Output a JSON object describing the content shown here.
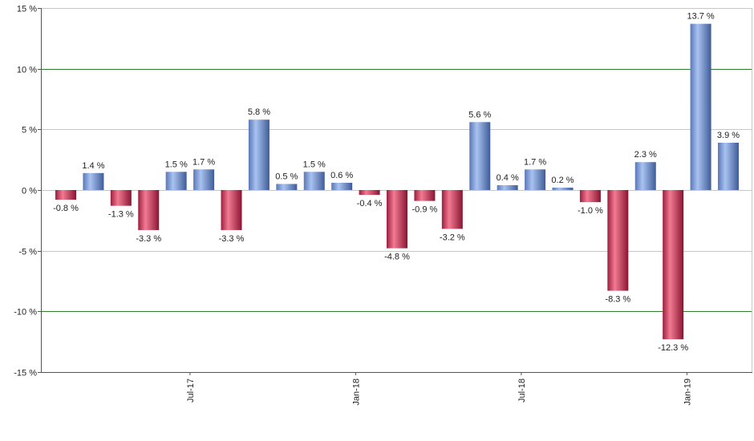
{
  "chart_data": {
    "type": "bar",
    "title": "",
    "xlabel": "",
    "ylabel": "",
    "ylim": [
      -15,
      15
    ],
    "y_ticks": [
      15,
      10,
      5,
      0,
      -5,
      -10,
      -15
    ],
    "y_tick_labels": [
      "15 %",
      "10 %",
      "5 %",
      "0 %",
      "-5 %",
      "-10 %",
      "-15 %"
    ],
    "x_tick_labels": [
      {
        "label": "Jul-17",
        "after_index": 4
      },
      {
        "label": "Jan-18",
        "after_index": 10
      },
      {
        "label": "Jul-18",
        "after_index": 16
      },
      {
        "label": "Jan-19",
        "after_index": 22
      }
    ],
    "values": [
      -0.8,
      1.4,
      -1.3,
      -3.3,
      1.5,
      1.7,
      -3.3,
      5.8,
      0.5,
      1.5,
      0.6,
      -0.4,
      -4.8,
      -0.9,
      -3.2,
      5.6,
      0.4,
      1.7,
      0.2,
      -1.0,
      -8.3,
      2.3,
      -12.3,
      13.7,
      3.9
    ],
    "value_labels": [
      "-0.8 %",
      "1.4 %",
      "-1.3 %",
      "-3.3 %",
      "1.5 %",
      "1.7 %",
      "-3.3 %",
      "5.8 %",
      "0.5 %",
      "1.5 %",
      "0.6 %",
      "-0.4 %",
      "-4.8 %",
      "-0.9 %",
      "-3.2 %",
      "5.6 %",
      "0.4 %",
      "1.7 %",
      "0.2 %",
      "-1.0 %",
      "-8.3 %",
      "2.3 %",
      "-12.3 %",
      "13.7 %",
      "3.9 %"
    ],
    "grid": true,
    "highlight_gridlines": [
      10,
      -10
    ],
    "colors": {
      "positive": "#7f9fdc",
      "negative": "#c8385a",
      "grid": "#c8c8c8",
      "grid_highlight": "#2e7d2e",
      "axis": "#555555"
    }
  }
}
